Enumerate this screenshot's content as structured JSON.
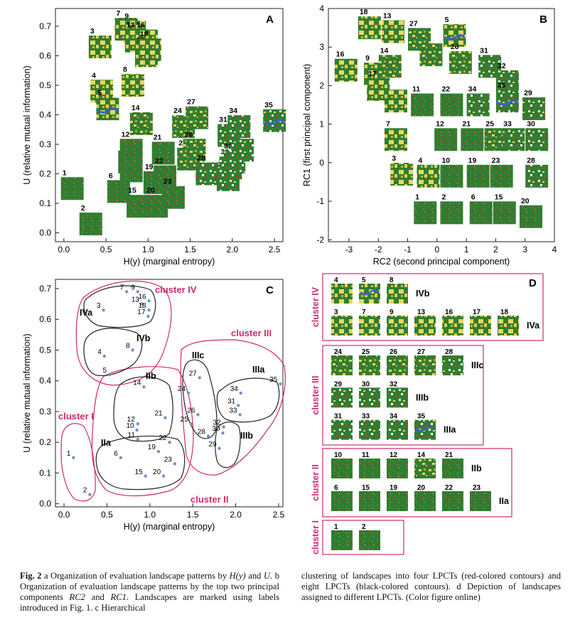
{
  "panels": {
    "A": {
      "letter": "A",
      "xlabel": "H(y) (marginal entropy)",
      "ylabel": "U (relative mutual information)",
      "xticks": [
        "0.0",
        "0.5",
        "1.0",
        "1.5",
        "2.0",
        "2.5"
      ],
      "yticks": [
        "0.0",
        "0.1",
        "0.2",
        "0.3",
        "0.4",
        "0.5",
        "0.6",
        "0.7"
      ],
      "xlim": [
        -0.1,
        2.6
      ],
      "ylim": [
        -0.03,
        0.76
      ]
    },
    "B": {
      "letter": "B",
      "xlabel": "RC2 (second principal component)",
      "ylabel": "RC1 (first principal component)",
      "xticks": [
        "-3",
        "-2",
        "-1",
        "0",
        "1",
        "2",
        "3",
        "4"
      ],
      "yticks": [
        "-2",
        "-1",
        "0",
        "1",
        "2",
        "3",
        "4"
      ],
      "xlim": [
        -3.7,
        4
      ],
      "ylim": [
        -2.05,
        4
      ]
    },
    "C": {
      "letter": "C",
      "xlabel": "H(y) (marginal entropy)",
      "ylabel": "U (relative mutual information)",
      "xticks": [
        "0.0",
        "0.5",
        "1.0",
        "1.5",
        "2.0",
        "2.5"
      ],
      "yticks": [
        "0.0",
        "0.1",
        "0.2",
        "0.3",
        "0.4",
        "0.5",
        "0.6",
        "0.7"
      ],
      "xlim": [
        -0.1,
        2.55
      ],
      "ylim": [
        -0.01,
        0.73
      ]
    },
    "D": {
      "letter": "D"
    }
  },
  "chart_data": [
    {
      "panel": "A",
      "type": "scatter",
      "xlabel": "H(y) (marginal entropy)",
      "ylabel": "U (relative mutual information)",
      "xlim": [
        -0.1,
        2.6
      ],
      "ylim": [
        -0.03,
        0.76
      ],
      "points": [
        {
          "label": "1",
          "x": 0.1,
          "y": 0.15
        },
        {
          "label": "2",
          "x": 0.32,
          "y": 0.03
        },
        {
          "label": "3",
          "x": 0.43,
          "y": 0.63
        },
        {
          "label": "4",
          "x": 0.45,
          "y": 0.48
        },
        {
          "label": "5",
          "x": 0.52,
          "y": 0.42
        },
        {
          "label": "6",
          "x": 0.65,
          "y": 0.14
        },
        {
          "label": "7",
          "x": 0.74,
          "y": 0.69
        },
        {
          "label": "8",
          "x": 0.82,
          "y": 0.5
        },
        {
          "label": "9",
          "x": 0.84,
          "y": 0.68
        },
        {
          "label": "10",
          "x": 0.78,
          "y": 0.24
        },
        {
          "label": "11",
          "x": 0.8,
          "y": 0.21
        },
        {
          "label": "12",
          "x": 0.8,
          "y": 0.28
        },
        {
          "label": "13",
          "x": 0.86,
          "y": 0.65
        },
        {
          "label": "14",
          "x": 0.92,
          "y": 0.37
        },
        {
          "label": "15",
          "x": 0.88,
          "y": 0.09
        },
        {
          "label": "16",
          "x": 0.98,
          "y": 0.65
        },
        {
          "label": "17",
          "x": 0.98,
          "y": 0.6
        },
        {
          "label": "18",
          "x": 1.02,
          "y": 0.62
        },
        {
          "label": "19",
          "x": 1.08,
          "y": 0.17
        },
        {
          "label": "20",
          "x": 1.1,
          "y": 0.09
        },
        {
          "label": "21",
          "x": 1.18,
          "y": 0.27
        },
        {
          "label": "22",
          "x": 1.2,
          "y": 0.19
        },
        {
          "label": "23",
          "x": 1.3,
          "y": 0.12
        },
        {
          "label": "24",
          "x": 1.42,
          "y": 0.36
        },
        {
          "label": "25",
          "x": 1.48,
          "y": 0.25
        },
        {
          "label": "26",
          "x": 1.55,
          "y": 0.28
        },
        {
          "label": "27",
          "x": 1.58,
          "y": 0.39
        },
        {
          "label": "28",
          "x": 1.7,
          "y": 0.2
        },
        {
          "label": "29",
          "x": 1.95,
          "y": 0.18
        },
        {
          "label": "30",
          "x": 1.98,
          "y": 0.22
        },
        {
          "label": "31",
          "x": 1.96,
          "y": 0.33
        },
        {
          "label": "32",
          "x": 2.02,
          "y": 0.24
        },
        {
          "label": "33",
          "x": 2.12,
          "y": 0.28
        },
        {
          "label": "34",
          "x": 2.08,
          "y": 0.36
        },
        {
          "label": "35",
          "x": 2.5,
          "y": 0.38
        }
      ]
    },
    {
      "panel": "B",
      "type": "scatter",
      "xlabel": "RC2 (second principal component)",
      "ylabel": "RC1 (first principal component)",
      "xlim": [
        -3.7,
        4
      ],
      "ylim": [
        -2.05,
        4
      ],
      "points": [
        {
          "label": "1",
          "x": -0.4,
          "y": -1.3
        },
        {
          "label": "2",
          "x": 0.5,
          "y": -1.3
        },
        {
          "label": "3",
          "x": -1.2,
          "y": -0.3
        },
        {
          "label": "4",
          "x": -0.3,
          "y": -0.35
        },
        {
          "label": "5",
          "x": 0.6,
          "y": 3.3
        },
        {
          "label": "6",
          "x": 1.5,
          "y": -1.3
        },
        {
          "label": "7",
          "x": -1.4,
          "y": 0.6
        },
        {
          "label": "8",
          "x": -1.4,
          "y": 1.6
        },
        {
          "label": "9",
          "x": -2.1,
          "y": 2.3
        },
        {
          "label": "10",
          "x": 0.5,
          "y": -0.35
        },
        {
          "label": "11",
          "x": -0.5,
          "y": 1.5
        },
        {
          "label": "12",
          "x": 0.3,
          "y": 0.6
        },
        {
          "label": "13",
          "x": -1.5,
          "y": 3.4
        },
        {
          "label": "14",
          "x": -1.6,
          "y": 2.5
        },
        {
          "label": "15",
          "x": 2.3,
          "y": -1.3
        },
        {
          "label": "16",
          "x": -3.1,
          "y": 2.4
        },
        {
          "label": "17",
          "x": -2.0,
          "y": 1.9
        },
        {
          "label": "18",
          "x": -2.3,
          "y": 3.5
        },
        {
          "label": "19",
          "x": 1.4,
          "y": -0.35
        },
        {
          "label": "20",
          "x": 3.2,
          "y": -1.4
        },
        {
          "label": "21",
          "x": 1.2,
          "y": 0.6
        },
        {
          "label": "22",
          "x": 0.5,
          "y": 1.5
        },
        {
          "label": "23",
          "x": 2.2,
          "y": -0.35
        },
        {
          "label": "24",
          "x": -0.2,
          "y": 2.8
        },
        {
          "label": "25",
          "x": 2.0,
          "y": 0.6
        },
        {
          "label": "26",
          "x": 0.8,
          "y": 2.6
        },
        {
          "label": "27",
          "x": -0.6,
          "y": 3.2
        },
        {
          "label": "28",
          "x": 3.4,
          "y": -0.35
        },
        {
          "label": "29",
          "x": 3.3,
          "y": 1.4
        },
        {
          "label": "30",
          "x": 3.4,
          "y": 0.6
        },
        {
          "label": "31",
          "x": 1.8,
          "y": 2.5
        },
        {
          "label": "32",
          "x": 2.4,
          "y": 2.1
        },
        {
          "label": "33",
          "x": 2.6,
          "y": 0.6
        },
        {
          "label": "34",
          "x": 1.4,
          "y": 1.5
        },
        {
          "label": "35",
          "x": 2.4,
          "y": 1.6
        }
      ]
    },
    {
      "panel": "C",
      "type": "scatter",
      "xlabel": "H(y) (marginal entropy)",
      "ylabel": "U (relative mutual information)",
      "xlim": [
        -0.1,
        2.55
      ],
      "ylim": [
        -0.01,
        0.73
      ],
      "points": [
        {
          "label": "1",
          "x": 0.11,
          "y": 0.15
        },
        {
          "label": "2",
          "x": 0.3,
          "y": 0.03
        },
        {
          "label": "3",
          "x": 0.46,
          "y": 0.63
        },
        {
          "label": "4",
          "x": 0.47,
          "y": 0.48
        },
        {
          "label": "5",
          "x": 0.53,
          "y": 0.42
        },
        {
          "label": "6",
          "x": 0.66,
          "y": 0.15
        },
        {
          "label": "7",
          "x": 0.73,
          "y": 0.69
        },
        {
          "label": "8",
          "x": 0.8,
          "y": 0.5
        },
        {
          "label": "9",
          "x": 0.86,
          "y": 0.69
        },
        {
          "label": "10",
          "x": 0.85,
          "y": 0.24
        },
        {
          "label": "11",
          "x": 0.86,
          "y": 0.21
        },
        {
          "label": "12",
          "x": 0.86,
          "y": 0.26
        },
        {
          "label": "13",
          "x": 0.91,
          "y": 0.65
        },
        {
          "label": "14",
          "x": 0.93,
          "y": 0.38
        },
        {
          "label": "15",
          "x": 0.95,
          "y": 0.09
        },
        {
          "label": "16",
          "x": 0.99,
          "y": 0.66
        },
        {
          "label": "17",
          "x": 0.98,
          "y": 0.61
        },
        {
          "label": "18",
          "x": 0.99,
          "y": 0.63
        },
        {
          "label": "19",
          "x": 1.1,
          "y": 0.17
        },
        {
          "label": "20",
          "x": 1.16,
          "y": 0.09
        },
        {
          "label": "21",
          "x": 1.18,
          "y": 0.28
        },
        {
          "label": "22",
          "x": 1.23,
          "y": 0.2
        },
        {
          "label": "23",
          "x": 1.29,
          "y": 0.13
        },
        {
          "label": "24",
          "x": 1.45,
          "y": 0.36
        },
        {
          "label": "25",
          "x": 1.48,
          "y": 0.26
        },
        {
          "label": "26",
          "x": 1.56,
          "y": 0.29
        },
        {
          "label": "27",
          "x": 1.58,
          "y": 0.41
        },
        {
          "label": "28",
          "x": 1.68,
          "y": 0.22
        },
        {
          "label": "29",
          "x": 1.81,
          "y": 0.18
        },
        {
          "label": "30",
          "x": 1.85,
          "y": 0.23
        },
        {
          "label": "31",
          "x": 2.03,
          "y": 0.32
        },
        {
          "label": "32",
          "x": 1.86,
          "y": 0.25
        },
        {
          "label": "33",
          "x": 2.05,
          "y": 0.29
        },
        {
          "label": "34",
          "x": 2.06,
          "y": 0.36
        },
        {
          "label": "35",
          "x": 2.52,
          "y": 0.39
        }
      ],
      "clusters": [
        {
          "name": "cluster I",
          "kind": "red"
        },
        {
          "name": "cluster II",
          "kind": "red"
        },
        {
          "name": "cluster III",
          "kind": "red"
        },
        {
          "name": "cluster IV",
          "kind": "red"
        },
        {
          "name": "IIa",
          "kind": "black"
        },
        {
          "name": "IIb",
          "kind": "black"
        },
        {
          "name": "IIIa",
          "kind": "black"
        },
        {
          "name": "IIIb",
          "kind": "black"
        },
        {
          "name": "IIIc",
          "kind": "black"
        },
        {
          "name": "IVa",
          "kind": "black"
        },
        {
          "name": "IVb",
          "kind": "black"
        }
      ]
    }
  ],
  "panel_d": {
    "groups": [
      {
        "cluster": "cluster IV",
        "rows": [
          {
            "sub": "IVb",
            "items": [
              "4",
              "5",
              "8"
            ]
          },
          {
            "sub": "IVa",
            "items": [
              "3",
              "7",
              "9",
              "13",
              "16",
              "17",
              "18"
            ]
          }
        ]
      },
      {
        "cluster": "cluster III",
        "rows": [
          {
            "sub": "IIIc",
            "items": [
              "24",
              "25",
              "26",
              "27",
              "28"
            ]
          },
          {
            "sub": "IIIb",
            "items": [
              "29",
              "30",
              "32"
            ]
          },
          {
            "sub": "IIIa",
            "items": [
              "31",
              "33",
              "34",
              "35"
            ]
          }
        ]
      },
      {
        "cluster": "cluster II",
        "rows": [
          {
            "sub": "IIb",
            "items": [
              "10",
              "11",
              "12",
              "14",
              "21"
            ]
          },
          {
            "sub": "IIa",
            "items": [
              "6",
              "15",
              "19",
              "20",
              "22",
              "23"
            ]
          }
        ]
      },
      {
        "cluster": "cluster I",
        "rows": [
          {
            "sub": "",
            "items": [
              "1",
              "2"
            ]
          }
        ]
      }
    ]
  },
  "caption": {
    "fig_label": "Fig. 2",
    "left_pre": " a Organization of evaluation landscape patterns by ",
    "left_hy": "H(y)",
    "left_and": " and ",
    "left_u": "U",
    "left_b": ". b Organization of evaluation landscape patterns by the top two principal components ",
    "left_rc2": "RC2",
    "left_and2": " and ",
    "left_rc1": "RC1",
    "left_rest": ". Landscapes are marked using labels introduced in Fig. 1. c Hierarchical",
    "right": "clustering of landscapes into four LPCTs (red-colored contours) and eight LPCTs (black-colored contours). d Depiction of landscapes assigned to different LPCTs. (Color figure online)"
  },
  "colors": {
    "green": "#2f7d32",
    "dark_green": "#1f5e22",
    "yellow": "#e9d85a",
    "olive": "#b8a23a",
    "brown": "#9a5a2a",
    "blue": "#3f5fd0",
    "magenta": "#d2286e",
    "point": "#6f93c8"
  }
}
